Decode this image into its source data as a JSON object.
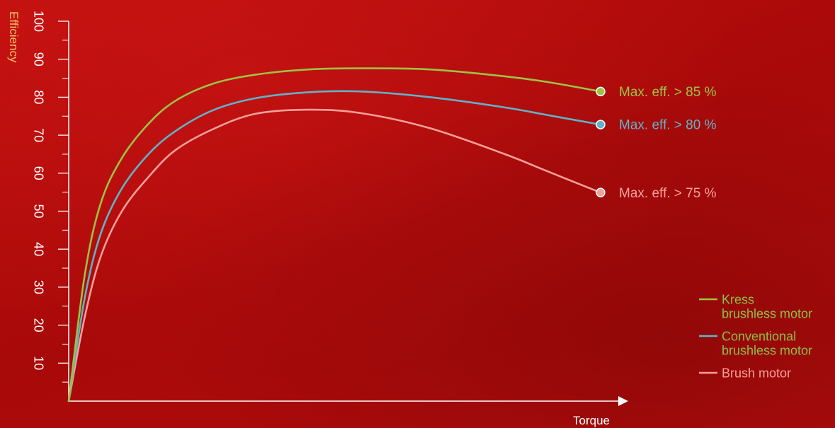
{
  "colors": {
    "axis": "#ffffff",
    "ylabel": "#f2c46a",
    "kress": "#9cc343",
    "conventional": "#5fb3c8",
    "brush": "#f7a09a",
    "legend_text": "#8fbf45"
  },
  "chart_data": {
    "type": "line",
    "title": "",
    "xlabel": "Torque",
    "ylabel": "Efficiency",
    "ylim": [
      0,
      100
    ],
    "y_ticks": [
      "100",
      "90",
      "80",
      "70",
      "60",
      "50",
      "40",
      "30",
      "20",
      "10"
    ],
    "y_tick_values": [
      100,
      90,
      80,
      70,
      60,
      50,
      40,
      30,
      20,
      10
    ],
    "grid": false,
    "legend_position": "bottom-right",
    "series": [
      {
        "name": "Kress brushless motor",
        "legend_lines": [
          "Kress",
          "brushless motor"
        ],
        "color_key": "kress",
        "end_label": "Max. eff. > 85 %",
        "x": [
          0,
          0.03,
          0.06,
          0.1,
          0.15,
          0.2,
          0.27,
          0.35,
          0.45,
          0.55,
          0.68,
          0.82,
          0.9,
          1.0
        ],
        "y": [
          0,
          33,
          52,
          64,
          73,
          79,
          83.5,
          85.9,
          87.3,
          87.6,
          87.3,
          85.5,
          84,
          81.5
        ]
      },
      {
        "name": "Conventional brushless motor",
        "legend_lines": [
          "Conventional",
          "brushless motor"
        ],
        "color_key": "conventional",
        "end_label": "Max. eff. > 80 %",
        "x": [
          0,
          0.03,
          0.06,
          0.1,
          0.15,
          0.2,
          0.27,
          0.35,
          0.45,
          0.55,
          0.68,
          0.82,
          0.9,
          1.0
        ],
        "y": [
          0,
          27,
          44,
          56,
          65,
          71,
          76.5,
          79.7,
          81.3,
          81.5,
          80.0,
          77.3,
          75.3,
          72.8
        ]
      },
      {
        "name": "Brush motor",
        "legend_lines": [
          "Brush motor"
        ],
        "color_key": "brush",
        "end_label": "Max. eff. > 75 %",
        "x": [
          0,
          0.03,
          0.06,
          0.1,
          0.15,
          0.2,
          0.27,
          0.35,
          0.45,
          0.55,
          0.68,
          0.82,
          0.9,
          1.0
        ],
        "y": [
          0,
          22,
          38,
          50,
          59,
          66,
          71.5,
          75.6,
          76.7,
          75.8,
          71.8,
          65.0,
          60.5,
          54.9
        ]
      }
    ]
  }
}
